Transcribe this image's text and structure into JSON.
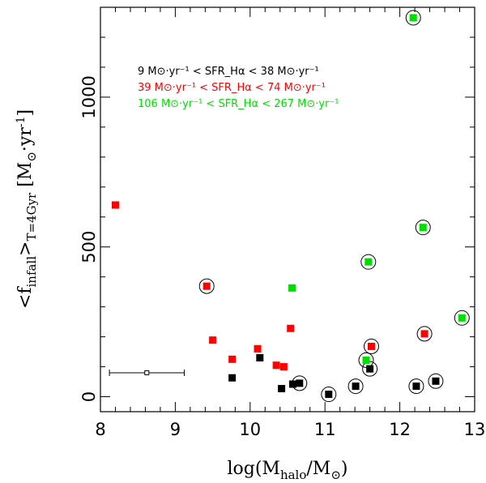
{
  "chart_data": {
    "type": "scatter",
    "title": "",
    "xlabel": {
      "main": "log(M",
      "sub": "halo",
      "mid": "/M",
      "sun": "⊙",
      "end": ")"
    },
    "ylabel": {
      "lt": "<f",
      "sub1": "infall",
      "gt": ">",
      "sub2": "T=4Gyr",
      "unit_open": " [M",
      "sun": "⊙",
      "unit_mid": "·yr",
      "sup": "-1",
      "unit_close": "]"
    },
    "xlim": [
      8,
      13
    ],
    "ylim": [
      -50,
      1300
    ],
    "xticks": [
      8,
      9,
      10,
      11,
      12,
      13
    ],
    "yticks": [
      0,
      500,
      1000
    ],
    "legend": {
      "placement": "top-center",
      "entries": [
        {
          "color": "#000000",
          "text": "9 M⊙·yr⁻¹ < SFR_Hα < 38 M⊙·yr⁻¹"
        },
        {
          "color": "#ff0000",
          "text": "39 M⊙·yr⁻¹ < SFR_Hα < 74 M⊙·yr⁻¹"
        },
        {
          "color": "#00dd00",
          "text": "106 M⊙·yr⁻¹ < SFR_Hα < 267 M⊙·yr⁻¹"
        }
      ]
    },
    "series": [
      {
        "name": "9-38",
        "color": "#000000",
        "points": [
          {
            "x": 9.76,
            "y": 63,
            "circled": false
          },
          {
            "x": 10.13,
            "y": 130,
            "circled": false
          },
          {
            "x": 10.42,
            "y": 27,
            "circled": false
          },
          {
            "x": 10.57,
            "y": 42,
            "circled": false
          },
          {
            "x": 10.66,
            "y": 45,
            "circled": true
          },
          {
            "x": 11.05,
            "y": 8,
            "circled": true
          },
          {
            "x": 11.41,
            "y": 35,
            "circled": true
          },
          {
            "x": 11.6,
            "y": 93,
            "circled": true
          },
          {
            "x": 12.22,
            "y": 35,
            "circled": true
          },
          {
            "x": 12.48,
            "y": 52,
            "circled": true
          }
        ]
      },
      {
        "name": "39-74",
        "color": "#ff0000",
        "points": [
          {
            "x": 8.2,
            "y": 640,
            "circled": false
          },
          {
            "x": 9.42,
            "y": 369,
            "circled": true
          },
          {
            "x": 9.5,
            "y": 189,
            "circled": false
          },
          {
            "x": 9.76,
            "y": 125,
            "circled": false
          },
          {
            "x": 10.1,
            "y": 160,
            "circled": false
          },
          {
            "x": 10.35,
            "y": 105,
            "circled": false
          },
          {
            "x": 10.45,
            "y": 100,
            "circled": false
          },
          {
            "x": 10.54,
            "y": 228,
            "circled": false
          },
          {
            "x": 11.62,
            "y": 168,
            "circled": true
          },
          {
            "x": 12.33,
            "y": 210,
            "circled": true
          }
        ]
      },
      {
        "name": "106-267",
        "color": "#00dd00",
        "points": [
          {
            "x": 10.56,
            "y": 363,
            "circled": false
          },
          {
            "x": 11.55,
            "y": 122,
            "circled": true
          },
          {
            "x": 11.58,
            "y": 450,
            "circled": true
          },
          {
            "x": 12.18,
            "y": 1265,
            "circled": true
          },
          {
            "x": 12.31,
            "y": 565,
            "circled": true
          },
          {
            "x": 12.83,
            "y": 263,
            "circled": true
          }
        ]
      }
    ],
    "error_bar": {
      "x": 8.62,
      "y": 80,
      "xmin": 8.12,
      "xmax": 9.12
    }
  }
}
